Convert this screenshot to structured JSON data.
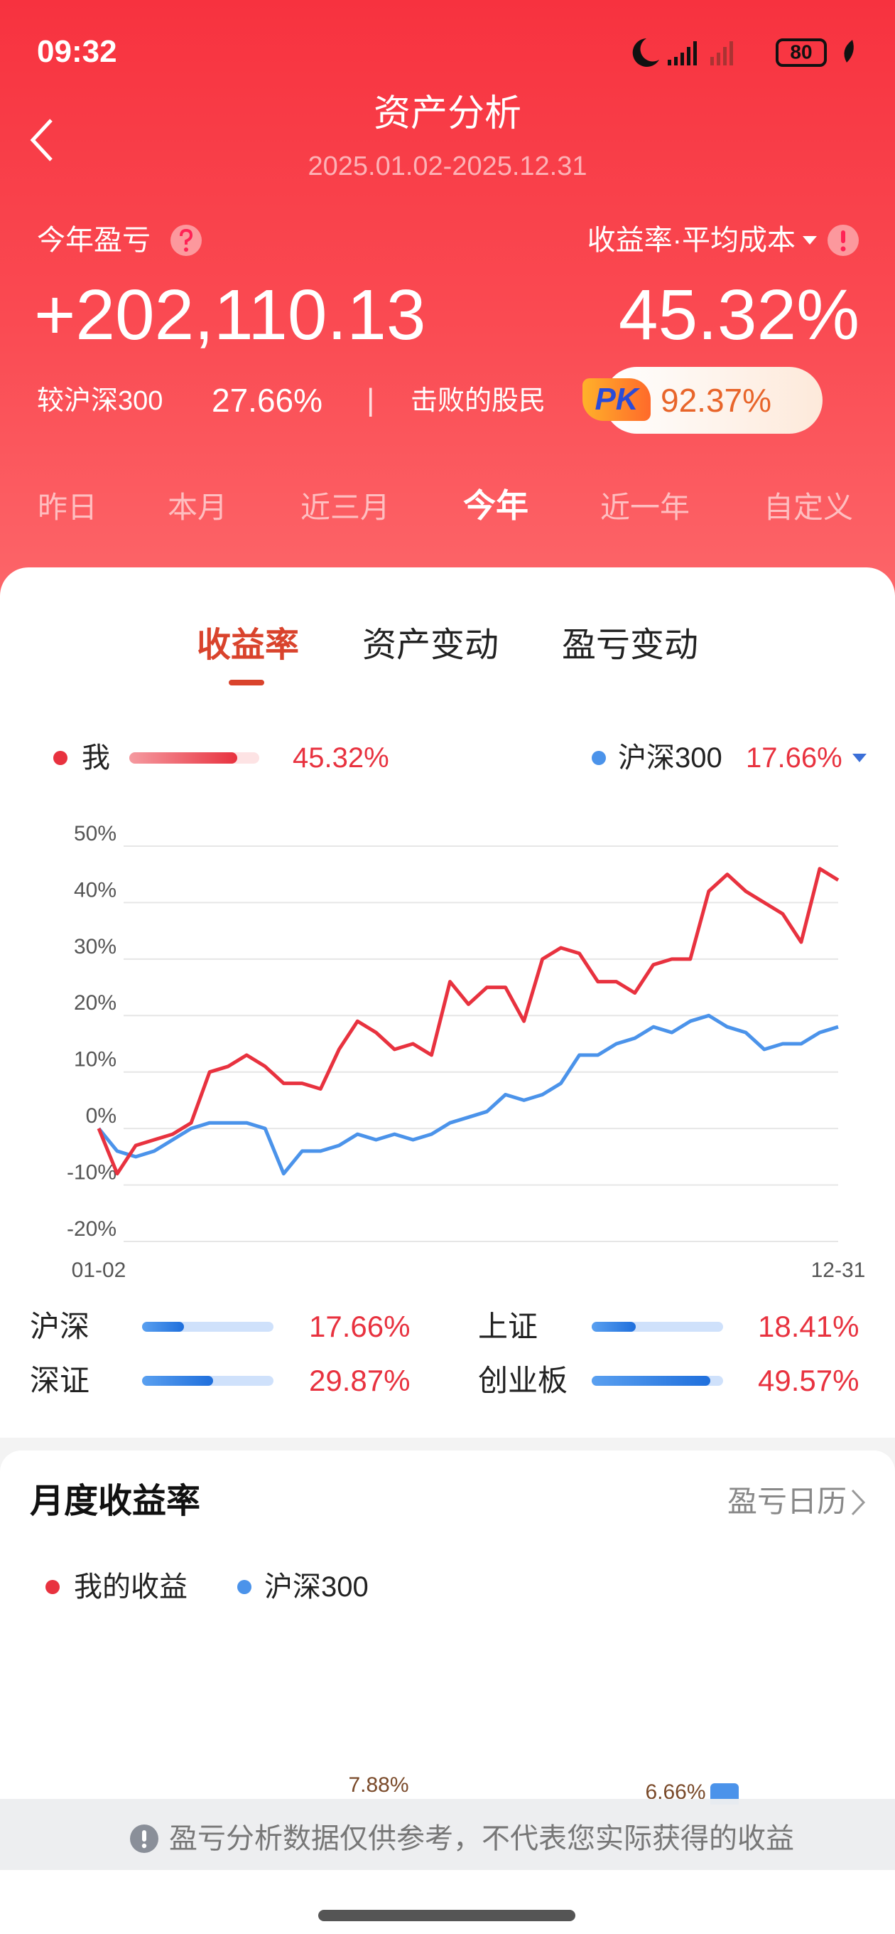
{
  "status_bar": {
    "time": "09:32",
    "battery": "80"
  },
  "header": {
    "title": "资产分析",
    "date_range": "2025.01.02-2025.12.31"
  },
  "summary": {
    "profit_label": "今年盈亏",
    "metric_label": "收益率·平均成本",
    "profit": "+202,110.13",
    "return_rate": "45.32%",
    "vs_label": "较沪深300",
    "vs_value": "27.66%",
    "separator": "|",
    "beat_label": "击败的股民",
    "pk_badge": "PK",
    "beat_value": "92.37%"
  },
  "periods": [
    "昨日",
    "本月",
    "近三月",
    "今年",
    "近一年",
    "自定义"
  ],
  "active_period": "今年",
  "chart_tabs": [
    "收益率",
    "资产变动",
    "盈亏变动"
  ],
  "legend_values": [
    "45.32%",
    "17.66%"
  ],
  "chart_data": {
    "type": "line",
    "categories": [
      "01-02",
      null,
      null,
      null,
      null,
      null,
      null,
      null,
      null,
      null,
      null,
      null,
      null,
      null,
      null,
      null,
      null,
      null,
      null,
      null,
      null,
      null,
      null,
      null,
      null,
      null,
      null,
      null,
      null,
      null,
      null,
      null,
      null,
      null,
      null,
      null,
      null,
      null,
      null,
      null,
      "12-31"
    ],
    "series": [
      {
        "name": "我",
        "color": "#e8323f",
        "values": [
          0,
          -8,
          -3,
          -2,
          -1,
          1,
          10,
          11,
          13,
          11,
          8,
          8,
          7,
          14,
          19,
          17,
          14,
          15,
          13,
          26,
          22,
          25,
          25,
          19,
          30,
          32,
          31,
          26,
          26,
          24,
          29,
          30,
          30,
          42,
          45,
          42,
          40,
          38,
          33,
          46,
          44
        ]
      },
      {
        "name": "沪深300",
        "color": "#4b93ea",
        "values": [
          0,
          -4,
          -5,
          -4,
          -2,
          0,
          1,
          1,
          1,
          0,
          -8,
          -4,
          -4,
          -3,
          -1,
          -2,
          -1,
          -2,
          -1,
          1,
          2,
          3,
          6,
          5,
          6,
          8,
          13,
          13,
          15,
          16,
          18,
          17,
          19,
          20,
          18,
          17,
          14,
          15,
          15,
          17,
          18
        ]
      }
    ],
    "ylim": [
      -20,
      50
    ],
    "yticks": [
      {
        "value": -20,
        "label": "-20%"
      },
      {
        "value": -10,
        "label": "-10%"
      },
      {
        "value": 0,
        "label": "0%"
      },
      {
        "value": 10,
        "label": "10%"
      },
      {
        "value": 20,
        "label": "20%"
      },
      {
        "value": 30,
        "label": "30%"
      },
      {
        "value": 40,
        "label": "40%"
      },
      {
        "value": 50,
        "label": "50%"
      }
    ],
    "grid": true
  },
  "comparisons": {
    "bar_range": [
      0,
      55
    ],
    "items": [
      {
        "name": "沪深",
        "value": 17.66,
        "value_label": "17.66%"
      },
      {
        "name": "上证",
        "value": 18.41,
        "value_label": "18.41%"
      },
      {
        "name": "深证",
        "value": 29.87,
        "value_label": "29.87%"
      },
      {
        "name": "创业板",
        "value": 49.57,
        "value_label": "49.57%"
      }
    ]
  },
  "monthly": {
    "title": "月度收益率",
    "calendar_link": "盈亏日历",
    "legend": [
      "我的收益",
      "沪深300"
    ],
    "visible_labels": [
      "7.88%",
      "6.66%"
    ]
  },
  "notice": "盈亏分析数据仅供参考，不代表您实际获得的收益"
}
